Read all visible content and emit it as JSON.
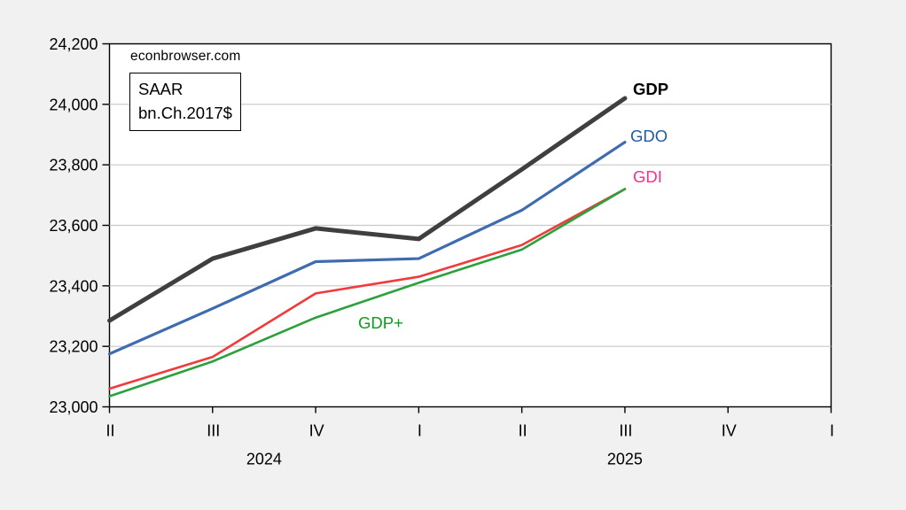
{
  "watermark": "econbrowser.com",
  "units_box": {
    "line1": "SAAR",
    "line2": "bn.Ch.2017$"
  },
  "colors": {
    "background": "#f1f1f1",
    "plot_background": "#ffffff",
    "plot_border": "#000000",
    "gridline": "#c8c8c8"
  },
  "chart_data": {
    "type": "line",
    "title": "",
    "xlabel": "",
    "ylabel": "",
    "grid": "horizontal",
    "legend": "inline-end-labels",
    "ylim": [
      23000,
      24200
    ],
    "y_ticks": [
      {
        "v": 23000,
        "label": "23,000"
      },
      {
        "v": 23200,
        "label": "23,200"
      },
      {
        "v": 23400,
        "label": "23,400"
      },
      {
        "v": 23600,
        "label": "23,600"
      },
      {
        "v": 23800,
        "label": "23,800"
      },
      {
        "v": 24000,
        "label": "24,000"
      },
      {
        "v": 24200,
        "label": "24,200"
      }
    ],
    "x_ticks": [
      "II",
      "III",
      "IV",
      "I",
      "II",
      "III",
      "IV",
      "I"
    ],
    "years": [
      {
        "label": "2024",
        "from": 0,
        "to": 3
      },
      {
        "label": "2025",
        "from": 3,
        "to": 7
      }
    ],
    "categories": [
      "2024 Q2",
      "2024 Q3",
      "2024 Q4",
      "2025 Q1",
      "2025 Q2",
      "2025 Q3"
    ],
    "series": [
      {
        "name": "GDP",
        "values": [
          23285,
          23490,
          23590,
          23555,
          23785,
          24020
        ],
        "color": "#3f3f3f",
        "label_color": "#000000",
        "line_width": 5
      },
      {
        "name": "GDO",
        "values": [
          23175,
          23325,
          23480,
          23490,
          23650,
          23875
        ],
        "color": "#3e6cae",
        "label_color": "#1e5ca6",
        "line_width": 3.2
      },
      {
        "name": "GDI",
        "values": [
          23060,
          23165,
          23375,
          23430,
          23535,
          23720
        ],
        "color": "#ef3b3b",
        "label_color": "#ff2d8e",
        "line_width": 2.6
      },
      {
        "name": "GDP+",
        "values": [
          23035,
          23150,
          23295,
          23410,
          23520,
          23720
        ],
        "color": "#2ca03a",
        "label_color": "#0aa019",
        "line_width": 2.6
      }
    ]
  }
}
